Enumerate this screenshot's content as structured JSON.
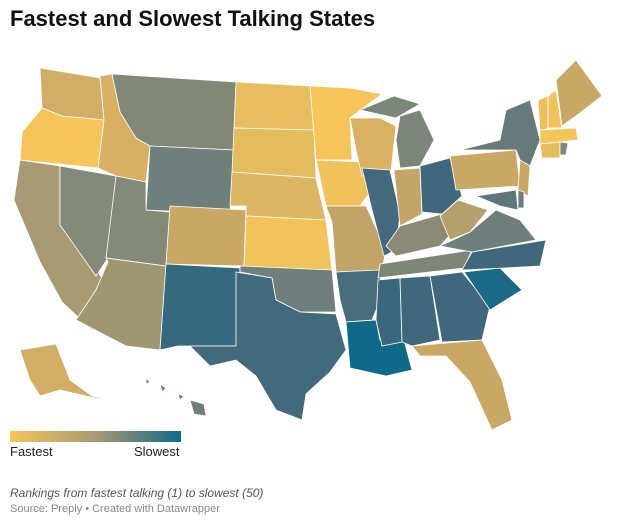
{
  "title": "Fastest and Slowest Talking States",
  "legend": {
    "min_label": "Fastest",
    "max_label": "Slowest",
    "color_min": "#f5c55a",
    "color_mid": "#a79a72",
    "color_max": "#0f6a8a"
  },
  "note": "Rankings from fastest talking (1) to slowest (50)",
  "source": "Source: Preply • Created with Datawrapper",
  "state_colors": {
    "WA": "#d2ad65",
    "OR": "#f5c55a",
    "CA": "#a89a72",
    "NV": "#84897a",
    "ID": "#d8b062",
    "MT": "#818878",
    "WY": "#6f807c",
    "UT": "#84897a",
    "AZ": "#a09772",
    "CO": "#c9a765",
    "NM": "#36697e",
    "ND": "#e7bd5f",
    "SD": "#e4bc60",
    "NE": "#dcb662",
    "KS": "#f2c35b",
    "OK": "#6f807c",
    "TX": "#42697c",
    "MN": "#f5c55a",
    "IA": "#f0c25b",
    "MO": "#c2a468",
    "AR": "#4a6d7c",
    "LA": "#0f6a8a",
    "WI": "#d8b163",
    "IL": "#44697c",
    "MI": "#7b8579",
    "IN": "#c4a568",
    "OH": "#3f687c",
    "KY": "#8a8a76",
    "TN": "#7d8678",
    "MS": "#3b677d",
    "AL": "#3f687c",
    "GA": "#3f687c",
    "FL": "#c9a765",
    "SC": "#1b6986",
    "NC": "#3f687c",
    "VA": "#6f807c",
    "WV": "#b3a06d",
    "PA": "#c9a765",
    "NY": "#66797b",
    "NJ": "#c9a765",
    "MD": "#5f777c",
    "DE": "#6f807c",
    "VT": "#ecc05d",
    "NH": "#f0c25b",
    "ME": "#c9a765",
    "MA": "#f5c55a",
    "CT": "#e5bd5f",
    "RI": "#84897a",
    "AK": "#d2ad65",
    "HI": "#6f807c"
  }
}
